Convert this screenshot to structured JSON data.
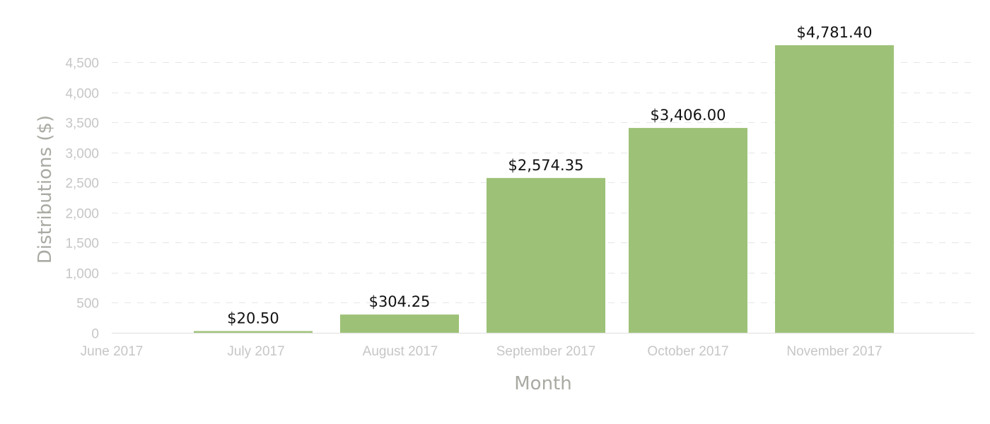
{
  "chart_data": {
    "type": "bar",
    "title": "",
    "x_tick_labels": [
      "June 2017",
      "July 2017",
      "August 2017",
      "September 2017",
      "October 2017",
      "November 2017"
    ],
    "categories": [
      "July 2017",
      "August 2017",
      "September 2017",
      "October 2017",
      "November 2017"
    ],
    "values": [
      20.5,
      304.25,
      2574.35,
      3406.0,
      4781.4
    ],
    "value_labels": [
      "$20.50",
      "$304.25",
      "$2,574.35",
      "$3,406.00",
      "$4,781.40"
    ],
    "xlabel": "Month",
    "ylabel": "Distributions ($)",
    "ylim": [
      0,
      4781.4
    ],
    "yticks": [
      0,
      500,
      1000,
      1500,
      2000,
      2500,
      3000,
      3500,
      4000,
      4500
    ],
    "ytick_labels": [
      "0",
      "500",
      "1,000",
      "1,500",
      "2,000",
      "2,500",
      "3,000",
      "3,500",
      "4,000",
      "4,500"
    ],
    "grid": true,
    "legend": "none",
    "colors": {
      "bar": "#9dc277",
      "grid": "#e6e6e6",
      "tick_text": "#c6c6c6",
      "axis_title": "#a9aaa3",
      "value_text": "#111111"
    }
  }
}
